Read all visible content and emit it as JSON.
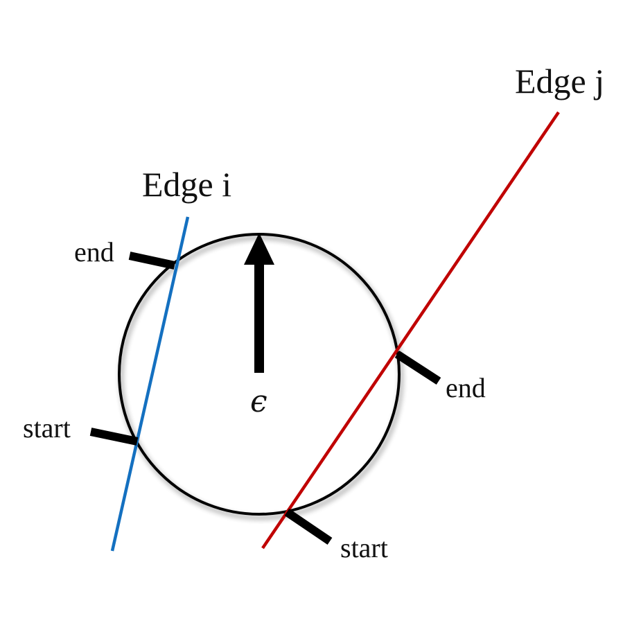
{
  "labels": {
    "edge_i": "Edge i",
    "edge_j": "Edge j",
    "epsilon": "ϵ",
    "edge_i_end": "end",
    "edge_i_start": "start",
    "edge_j_end": "end",
    "edge_j_start": "start"
  },
  "colors": {
    "edge_i": "#1470c0",
    "edge_j": "#c00000",
    "circle": "#000000",
    "markers": "#000000"
  }
}
